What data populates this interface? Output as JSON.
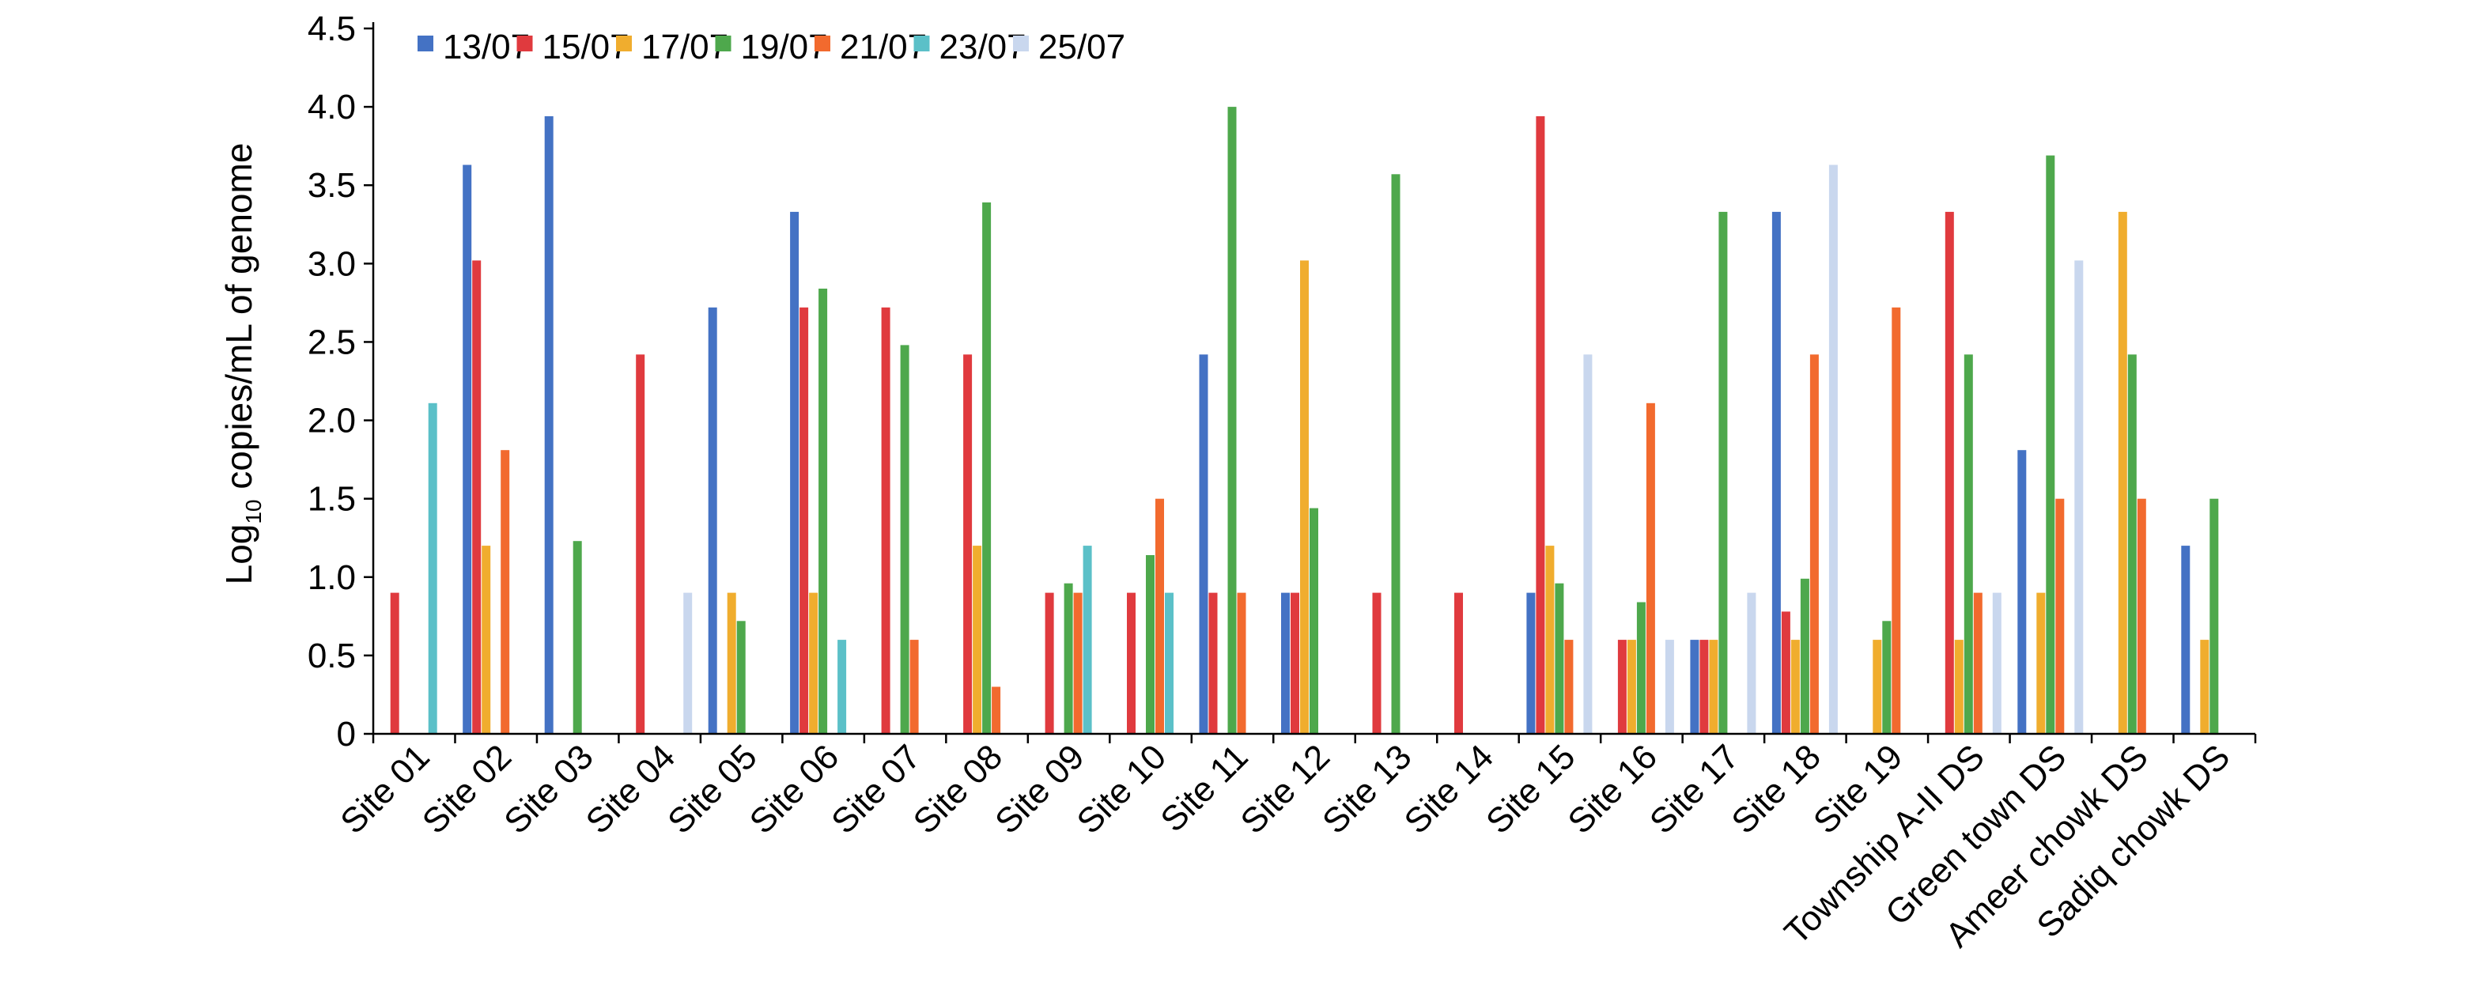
{
  "chart_data": {
    "type": "bar",
    "title": "",
    "ylabel_prefix": "Log",
    "ylabel_sub": "10",
    "ylabel_suffix": " copies/mL of genome",
    "xlabel": "",
    "ylim": [
      0,
      4.5
    ],
    "yticks": [
      "0",
      "0.5",
      "1.0",
      "1.5",
      "2.0",
      "2.5",
      "3.0",
      "3.5",
      "4.0",
      "4.5"
    ],
    "grid": false,
    "legend_position": "top",
    "categories": [
      "Site 01",
      "Site 02",
      "Site 03",
      "Site 04",
      "Site 05",
      "Site 06",
      "Site 07",
      "Site 08",
      "Site 09",
      "Site 10",
      "Site 11",
      "Site 12",
      "Site 13",
      "Site 14",
      "Site 15",
      "Site 16",
      "Site 17",
      "Site 18",
      "Site 19",
      "Township A-II DS",
      "Green town DS",
      "Ameer chowk DS",
      "Sadiq chowk DS"
    ],
    "series": [
      {
        "name": "13/07",
        "color": "#4472C4",
        "values": [
          0,
          3.63,
          3.94,
          0,
          2.72,
          3.33,
          0,
          0,
          0,
          0,
          2.42,
          0.9,
          0,
          0,
          0.9,
          0,
          0.6,
          3.33,
          0,
          0,
          1.81,
          0,
          1.2
        ]
      },
      {
        "name": "15/07",
        "color": "#E03A3E",
        "values": [
          0.9,
          3.02,
          0,
          2.42,
          0,
          2.72,
          2.72,
          2.42,
          0.9,
          0.9,
          0.9,
          0.9,
          0.9,
          0.9,
          3.94,
          0.6,
          0.6,
          0.78,
          0,
          3.33,
          0,
          0,
          0
        ]
      },
      {
        "name": "17/07",
        "color": "#F0AD2E",
        "values": [
          0,
          1.2,
          0,
          0,
          0.9,
          0.9,
          0,
          1.2,
          0,
          0,
          0,
          3.02,
          0,
          0,
          1.2,
          0.6,
          0.6,
          0.6,
          0.6,
          0.6,
          0.9,
          3.33,
          0.6
        ]
      },
      {
        "name": "19/07",
        "color": "#4EA84C",
        "values": [
          0,
          0,
          1.23,
          0,
          0.72,
          2.84,
          2.48,
          3.39,
          0.96,
          1.14,
          4.0,
          1.44,
          3.57,
          0,
          0.96,
          0.84,
          3.33,
          0.99,
          0.72,
          2.42,
          3.69,
          2.42,
          1.5
        ]
      },
      {
        "name": "21/07",
        "color": "#F26A2E",
        "values": [
          0,
          1.81,
          0,
          0,
          0,
          0,
          0.6,
          0.3,
          0.9,
          1.5,
          0.9,
          0,
          0,
          0,
          0.6,
          2.11,
          0,
          2.42,
          2.72,
          0.9,
          1.5,
          1.5,
          0
        ]
      },
      {
        "name": "23/07",
        "color": "#5BC0C8",
        "values": [
          2.11,
          0,
          0,
          0,
          0,
          0.6,
          0,
          0,
          1.2,
          0.9,
          0,
          0,
          0,
          0,
          0,
          0,
          0,
          0,
          0,
          0,
          0,
          0,
          0
        ]
      },
      {
        "name": "25/07",
        "color": "#C9D7EE",
        "values": [
          0,
          0,
          0,
          0.9,
          0,
          0,
          0,
          0,
          0,
          0,
          0,
          0,
          0,
          0,
          2.42,
          0.6,
          0.9,
          3.63,
          0,
          0.9,
          3.02,
          0,
          0
        ]
      }
    ]
  }
}
